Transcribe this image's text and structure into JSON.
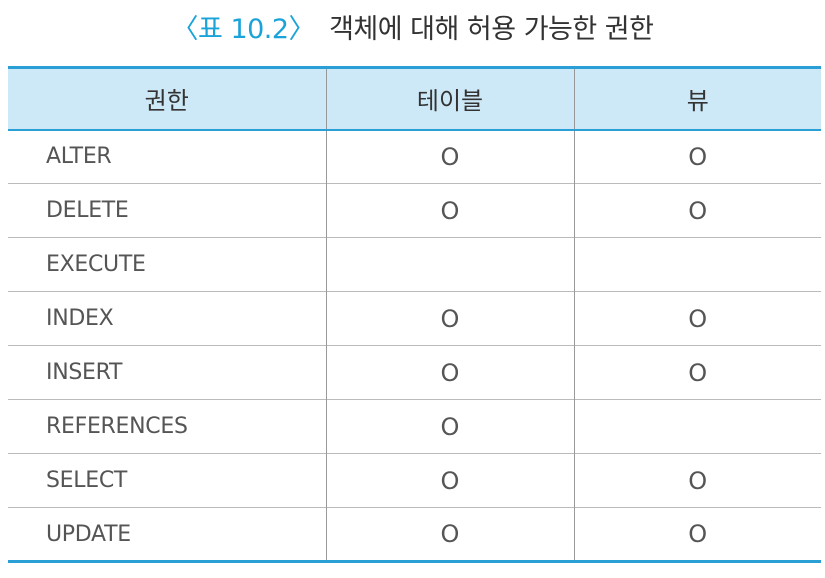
{
  "caption": {
    "label": "〈표 10.2〉",
    "title": "객체에 대해 허용 가능한 권한"
  },
  "table": {
    "headers": [
      "권한",
      "테이블",
      "뷰"
    ],
    "rows": [
      {
        "privilege": "ALTER",
        "table": "O",
        "view": "O"
      },
      {
        "privilege": "DELETE",
        "table": "O",
        "view": "O"
      },
      {
        "privilege": "EXECUTE",
        "table": "",
        "view": ""
      },
      {
        "privilege": "INDEX",
        "table": "O",
        "view": "O"
      },
      {
        "privilege": "INSERT",
        "table": "O",
        "view": "O"
      },
      {
        "privilege": "REFERENCES",
        "table": "O",
        "view": ""
      },
      {
        "privilege": "SELECT",
        "table": "O",
        "view": "O"
      },
      {
        "privilege": "UPDATE",
        "table": "O",
        "view": "O"
      }
    ]
  },
  "colors": {
    "header_bg": "#cde9f7",
    "rule": "#2a9fd6",
    "caption_label": "#1aa3d9"
  }
}
